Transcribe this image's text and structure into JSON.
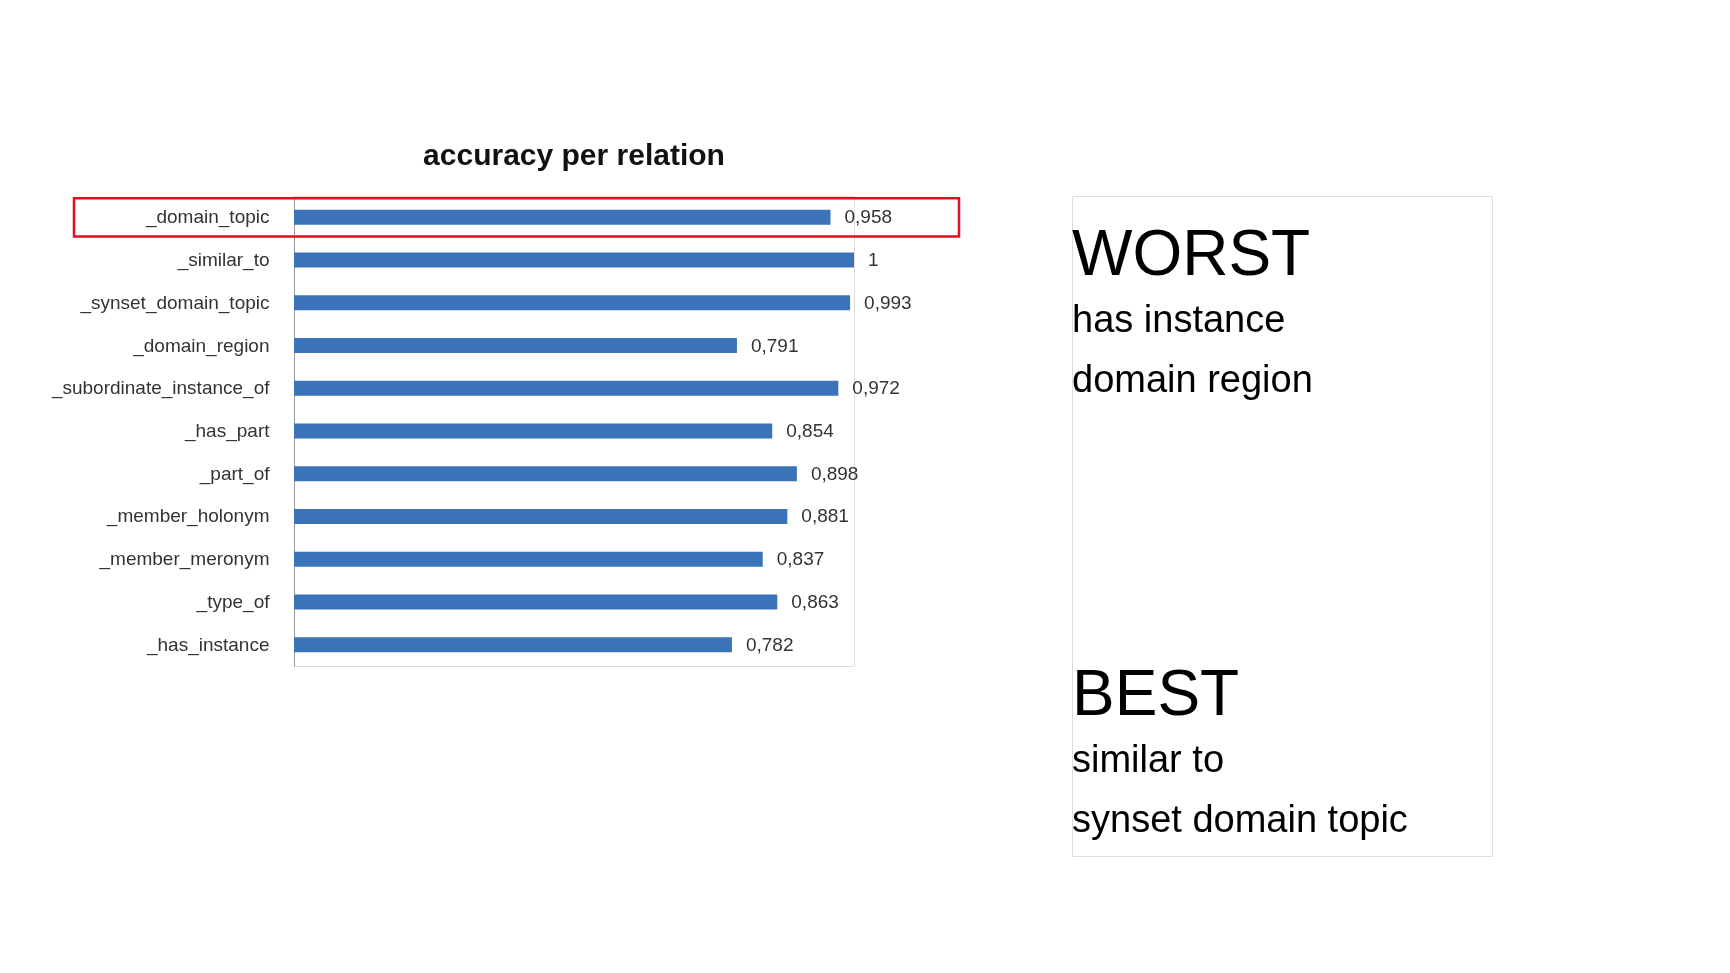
{
  "chart_data": {
    "type": "bar",
    "orientation": "horizontal",
    "title": "accuracy per relation",
    "categories": [
      "_domain_topic",
      "_similar_to",
      "_synset_domain_topic",
      "_domain_region",
      "_subordinate_instance_of",
      "_has_part",
      "_part_of",
      "_member_holonym",
      "_member_meronym",
      "_type_of",
      "_has_instance"
    ],
    "values": [
      0.958,
      1,
      0.993,
      0.791,
      0.972,
      0.854,
      0.898,
      0.881,
      0.837,
      0.863,
      0.782
    ],
    "value_labels": [
      "0,958",
      "1",
      "0,993",
      "0,791",
      "0,972",
      "0,854",
      "0,898",
      "0,881",
      "0,837",
      "0,863",
      "0,782"
    ],
    "color": "#3a73b8",
    "grid": false,
    "tick_labels": "y",
    "annotations": [
      "WORST",
      "has instance",
      "domain region",
      "BEST",
      "similar to",
      "synset domain topic"
    ]
  }
}
